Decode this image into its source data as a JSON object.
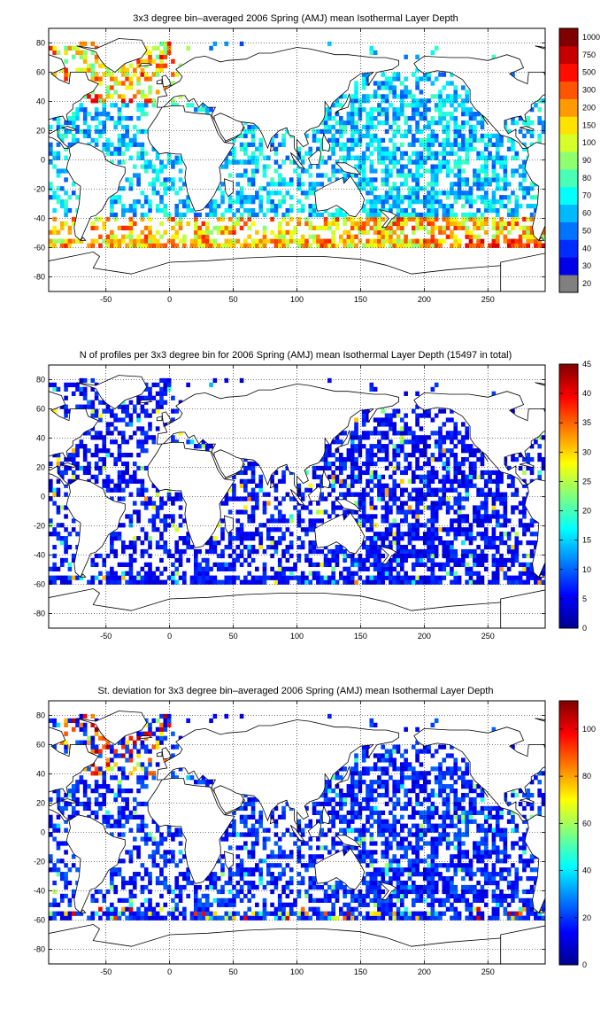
{
  "chart_data": [
    {
      "type": "heatmap",
      "title": "3x3 degree bin–averaged 2006 Spring (AMJ) mean Isothermal Layer Depth",
      "x_ticks": [
        -50,
        0,
        50,
        100,
        150,
        200,
        250
      ],
      "y_ticks": [
        -80,
        -60,
        -40,
        -20,
        0,
        20,
        40,
        60,
        80
      ],
      "xlim": [
        -95,
        295
      ],
      "ylim": [
        -90,
        90
      ],
      "grid": true,
      "colormap": "jet",
      "colorbar_scale": "categorical",
      "colorbar_ticks": [
        "20",
        "30",
        "40",
        "50",
        "60",
        "70",
        "80",
        "90",
        "100",
        "150",
        "200",
        "300",
        "500",
        "750",
        "1000"
      ],
      "colorbar_bottom_color": "#808080"
    },
    {
      "type": "heatmap",
      "title": "N of profiles per 3x3 degree bin for 2006 Spring (AMJ) mean Isothermal Layer Depth  (15497 in total)",
      "x_ticks": [
        -50,
        0,
        50,
        100,
        150,
        200,
        250
      ],
      "y_ticks": [
        -80,
        -60,
        -40,
        -20,
        0,
        20,
        40,
        60,
        80
      ],
      "xlim": [
        -95,
        295
      ],
      "ylim": [
        -90,
        90
      ],
      "grid": true,
      "colormap": "jet",
      "colorbar_range": [
        0,
        45
      ],
      "colorbar_ticks": [
        "0",
        "5",
        "10",
        "15",
        "20",
        "25",
        "30",
        "35",
        "40",
        "45"
      ]
    },
    {
      "type": "heatmap",
      "title": "St. deviation for 3x3 degree bin–averaged 2006 Spring (AMJ) mean Isothermal Layer Depth",
      "x_ticks": [
        -50,
        0,
        50,
        100,
        150,
        200,
        250
      ],
      "y_ticks": [
        -80,
        -60,
        -40,
        -20,
        0,
        20,
        40,
        60,
        80
      ],
      "xlim": [
        -95,
        295
      ],
      "ylim": [
        -90,
        90
      ],
      "grid": true,
      "colormap": "jet",
      "colorbar_range": [
        0,
        112
      ],
      "colorbar_ticks": [
        "0",
        "20",
        "40",
        "60",
        "80",
        "100"
      ]
    }
  ]
}
